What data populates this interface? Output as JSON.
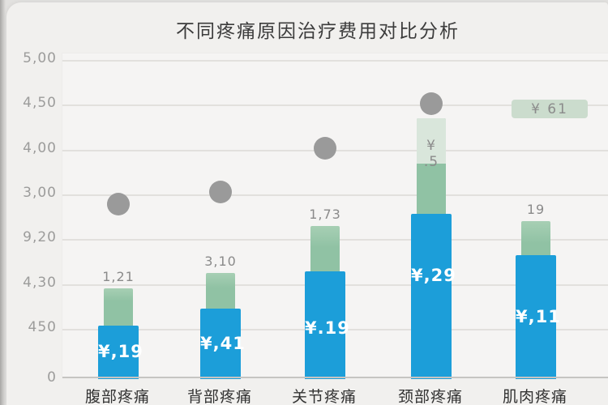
{
  "title": "不同疼痛原因治疗费用对比分析",
  "legend": {
    "label": "¥ 61"
  },
  "y_axis": {
    "tick_labels": [
      "5,00",
      "4,50",
      "4,00",
      "3,00",
      "9,20",
      "4,30",
      "450",
      "0"
    ]
  },
  "chart_data": {
    "type": "bar",
    "title": "不同疼痛原因治疗费用对比分析",
    "categories": [
      "腹部疼痛",
      "背部疼痛",
      "关节疼痛",
      "颈部疼痛",
      "肌肉疼痛"
    ],
    "ylim": [
      0,
      5
    ],
    "grid": true,
    "legend_position": "top-right",
    "legend_label": "¥ 61",
    "series": [
      {
        "name": "blue-cost-bar",
        "type": "bar",
        "color": "#1c9ed9",
        "values": [
          0.84,
          1.1,
          1.69,
          2.59,
          1.94
        ],
        "data_labels": [
          "¥,19",
          "¥,41",
          "¥.19",
          "¥,29",
          "¥,11"
        ]
      },
      {
        "name": "green-cost-bar",
        "type": "bar",
        "color": "#90c2a4",
        "values": [
          1.42,
          1.66,
          2.4,
          3.38,
          2.47
        ],
        "data_labels": [
          "1,21",
          "3,10",
          "1,73",
          "",
          "19"
        ]
      },
      {
        "name": "light-green-top-segment",
        "type": "bar",
        "color": "#d9e6db",
        "values": [
          null,
          null,
          null,
          4.09,
          null
        ],
        "data_labels": [
          "",
          "",
          "",
          "¥ .5",
          ""
        ]
      },
      {
        "name": "gray-dot",
        "type": "scatter",
        "color": "#9a9a9a",
        "values": [
          2.74,
          2.93,
          3.62,
          4.31,
          null
        ]
      }
    ]
  }
}
